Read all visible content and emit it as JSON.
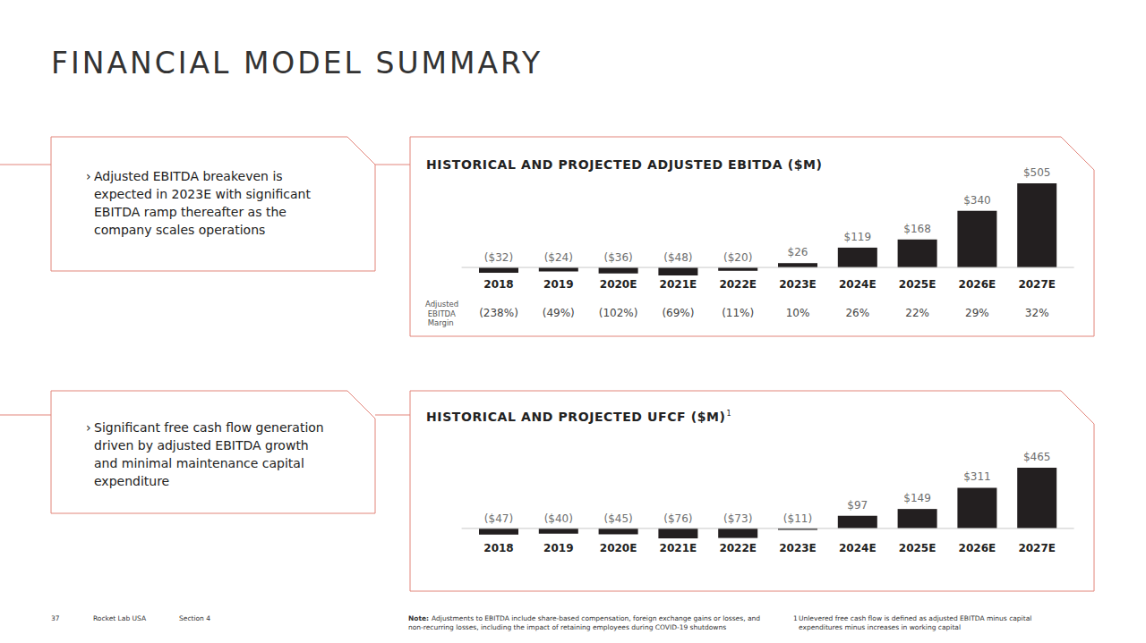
{
  "slide": {
    "title": "FINANCIAL MODEL SUMMARY",
    "bullet": "›",
    "callouts": [
      [
        "Adjusted EBITDA breakeven is",
        "expected in 2023E with significant",
        "EBITDA ramp thereafter as the",
        "company scales operations"
      ],
      [
        "Significant free cash flow generation",
        "driven by adjusted EBITDA growth",
        "and minimal maintenance capital",
        "expenditure"
      ]
    ],
    "page_number": "37",
    "company": "Rocket Lab USA",
    "section": "Section 4",
    "note_label": "Note:",
    "note": [
      "Adjustments to EBITDA include share-based compensation, foreign exchange gains or losses, and",
      "non-recurring losses, including the impact of retaining employees during COVID-19 shutdowns"
    ],
    "footnote_mark": "1",
    "footnote": [
      "Unlevered free cash flow is defined as adjusted EBITDA minus capital",
      "expenditures minus increases in working capital"
    ]
  },
  "chart_data": [
    {
      "type": "bar",
      "title": "HISTORICAL AND PROJECTED ADJUSTED EBITDA ($M)",
      "categories": [
        "2018",
        "2019",
        "2020E",
        "2021E",
        "2022E",
        "2023E",
        "2024E",
        "2025E",
        "2026E",
        "2027E"
      ],
      "values": [
        -32,
        -24,
        -36,
        -48,
        -20,
        26,
        119,
        168,
        340,
        505
      ],
      "value_labels": [
        "($32)",
        "($24)",
        "($36)",
        "($48)",
        "($20)",
        "$26",
        "$119",
        "$168",
        "$340",
        "$505"
      ],
      "color": "#231f20",
      "ylim": [
        -48,
        505
      ],
      "data_labels": true,
      "tick_labels": "x",
      "grid": false,
      "margin": {
        "label": "Adjusted EBITDA Margin",
        "labels": [
          "(238%)",
          "(49%)",
          "(102%)",
          "(69%)",
          "(11%)",
          "10%",
          "26%",
          "22%",
          "29%",
          "32%"
        ]
      }
    },
    {
      "type": "bar",
      "title": "HISTORICAL AND PROJECTED UFCF ($M)",
      "footnote_mark": "1",
      "categories": [
        "2018",
        "2019",
        "2020E",
        "2021E",
        "2022E",
        "2023E",
        "2024E",
        "2025E",
        "2026E",
        "2027E"
      ],
      "values": [
        -47,
        -40,
        -45,
        -76,
        -73,
        -11,
        97,
        149,
        311,
        465
      ],
      "value_labels": [
        "($47)",
        "($40)",
        "($45)",
        "($76)",
        "($73)",
        "($11)",
        "$97",
        "$149",
        "$311",
        "$465"
      ],
      "color": "#231f20",
      "ylim": [
        -76,
        465
      ],
      "data_labels": true,
      "tick_labels": "x",
      "grid": false
    }
  ]
}
